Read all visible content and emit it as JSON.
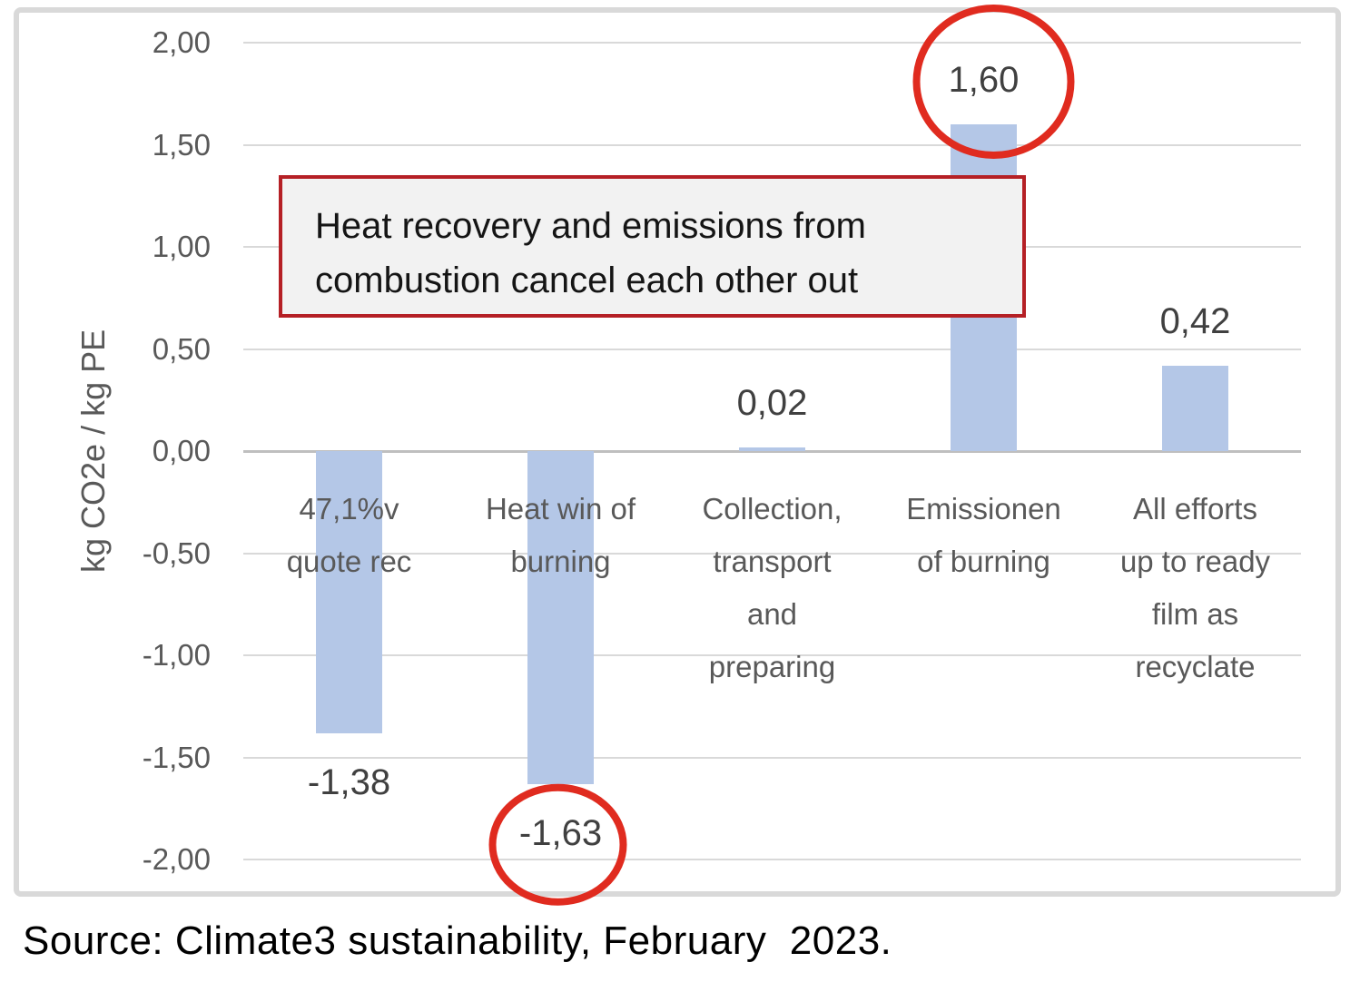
{
  "chart_data": {
    "type": "bar",
    "title": "",
    "xlabel": "",
    "ylabel": "kg CO2e / kg PE",
    "ylim": [
      -2.0,
      2.0
    ],
    "ytick_step": 0.5,
    "ytick_labels": [
      "2,00",
      "1,50",
      "1,00",
      "0,50",
      "0,00",
      "-0,50",
      "-1,00",
      "-1,50",
      "-2,00"
    ],
    "grid": "horizontal",
    "legend_position": "none",
    "points": [
      {
        "category": "47,1%v quote rec",
        "category_lines": [
          "47,1%v",
          "quote rec"
        ],
        "value": -1.38,
        "label": "-1,38",
        "circled": false
      },
      {
        "category": "Heat win of burning",
        "category_lines": [
          "Heat win of",
          "burning"
        ],
        "value": -1.63,
        "label": "-1,63",
        "circled": true
      },
      {
        "category": "Collection, transport and preparing",
        "category_lines": [
          "Collection,",
          "transport",
          "and",
          "preparing"
        ],
        "value": 0.02,
        "label": "0,02",
        "circled": false
      },
      {
        "category": "Emissionen of burning",
        "category_lines": [
          "Emissionen",
          "of burning"
        ],
        "value": 1.6,
        "label": "1,60",
        "circled": true
      },
      {
        "category": "All efforts up to ready film as recyclate",
        "category_lines": [
          "All efforts",
          "up to ready",
          "film as",
          "recyclate"
        ],
        "value": 0.42,
        "label": "0,42",
        "circled": false
      }
    ],
    "annotation": {
      "lines": [
        "Heat recovery and emissions from",
        "combustion cancel each other out"
      ]
    }
  },
  "colors": {
    "bar": "#b4c7e7",
    "gridline": "#d9d9d9",
    "zero_line": "#bfbfbf",
    "axis_text": "#595959",
    "data_label_text": "#404040",
    "annotation_border": "#b52025",
    "annotation_fill": "#f2f2f2",
    "circle_stroke": "#e02b1f",
    "frame_border": "#d9d9d9"
  },
  "source_note": "Source: Climate3 sustainability, February  2023."
}
